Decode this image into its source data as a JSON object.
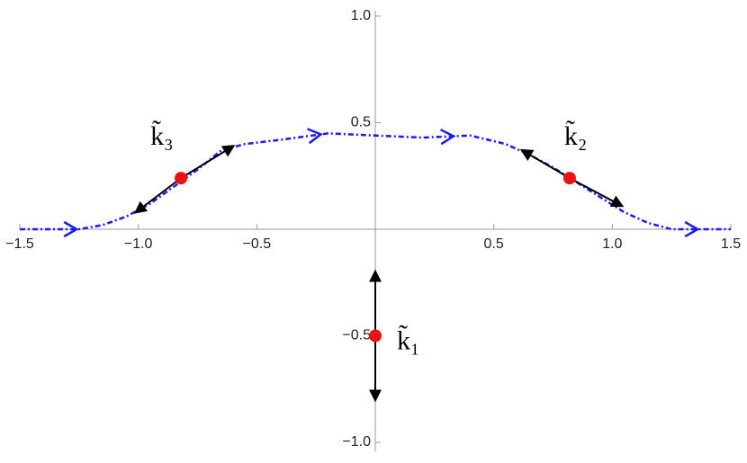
{
  "chart_data": {
    "type": "line",
    "x": [
      -1.5,
      -1.25,
      -1.15,
      -1.05,
      -0.95,
      -0.85,
      -0.75,
      -0.65,
      -0.55,
      -0.4,
      -0.2,
      0,
      0.2,
      0.4,
      0.55,
      0.65,
      0.75,
      0.85,
      0.95,
      1.05,
      1.15,
      1.25,
      1.4,
      1.5
    ],
    "values": [
      0,
      0,
      0.02,
      0.06,
      0.12,
      0.2,
      0.28,
      0.37,
      0.4,
      0.42,
      0.45,
      0.44,
      0.43,
      0.44,
      0.4,
      0.35,
      0.29,
      0.22,
      0.15,
      0.08,
      0.03,
      0,
      0,
      0
    ],
    "color": "#1a1aff",
    "direction_arrows_x": [
      -1.26,
      -0.23,
      0.33,
      1.36
    ],
    "points": [
      {
        "label": "k̃₁",
        "x": 0,
        "y": -0.5
      },
      {
        "label": "k̃₂",
        "x": 0.82,
        "y": 0.24
      },
      {
        "label": "k̃₃",
        "x": -0.82,
        "y": 0.24
      }
    ],
    "point_color": "#ee1111",
    "vectors": [
      {
        "from": [
          0,
          -0.5
        ],
        "to": [
          0,
          -0.2
        ]
      },
      {
        "from": [
          0,
          -0.5
        ],
        "to": [
          0,
          -0.8
        ]
      },
      {
        "from": [
          0.82,
          0.24
        ],
        "to": [
          0.62,
          0.37
        ]
      },
      {
        "from": [
          0.82,
          0.24
        ],
        "to": [
          1.04,
          0.11
        ]
      },
      {
        "from": [
          -0.82,
          0.24
        ],
        "to": [
          -0.6,
          0.39
        ]
      },
      {
        "from": [
          -0.82,
          0.24
        ],
        "to": [
          -1.01,
          0.08
        ]
      }
    ],
    "vector_color": "#000000",
    "xlim": [
      -1.5,
      1.5
    ],
    "ylim": [
      -1,
      1
    ],
    "xticks": [
      {
        "value": -1.5,
        "label": "−1.5"
      },
      {
        "value": -1,
        "label": "−1.0"
      },
      {
        "value": -0.5,
        "label": "−0.5"
      },
      0.5,
      {
        "value": 1,
        "label": "1.0"
      },
      1.5
    ],
    "yticks": [
      {
        "value": -1,
        "label": "−1.0"
      },
      {
        "value": -0.5,
        "label": "−0.5"
      },
      0.5,
      {
        "value": 1,
        "label": "1.0"
      }
    ]
  }
}
